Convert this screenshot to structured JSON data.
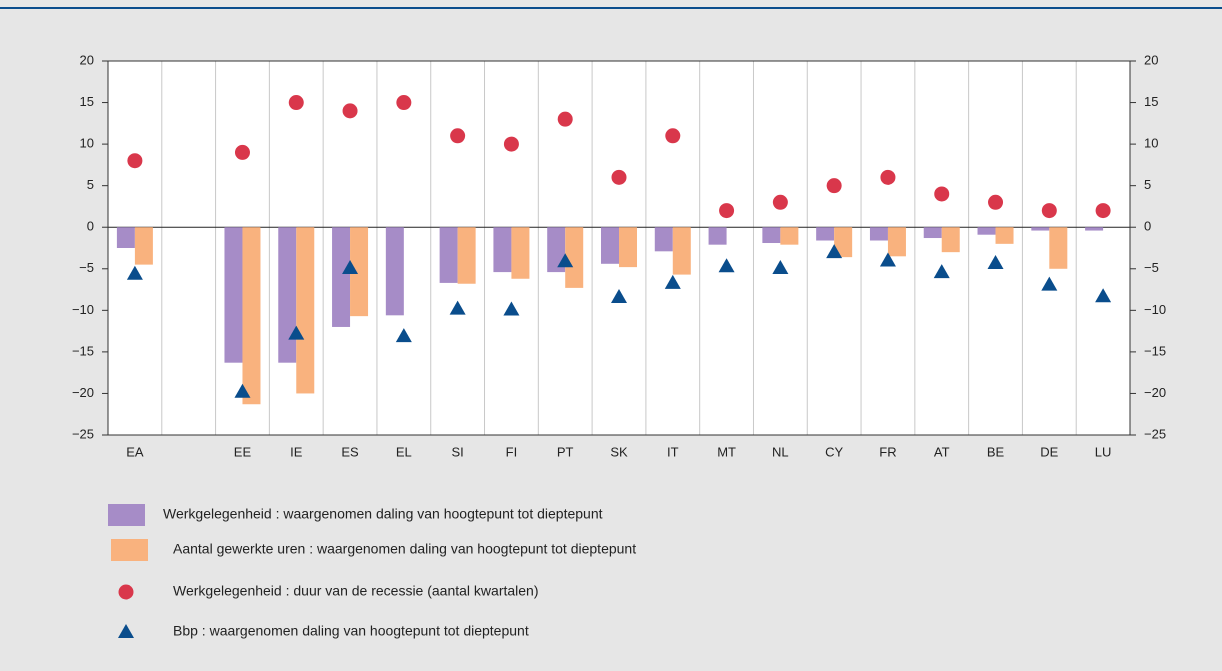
{
  "chart_data": {
    "type": "bar",
    "categories": [
      "EA",
      null,
      "EE",
      "IE",
      "ES",
      "EL",
      "SI",
      "FI",
      "PT",
      "SK",
      "IT",
      "MT",
      "NL",
      "CY",
      "FR",
      "AT",
      "BE",
      "DE",
      "LU"
    ],
    "series": [
      {
        "name": "Werkgelegenheid : waargenomen daling van hoogtepunt tot dieptepunt",
        "color": "#a68cc7",
        "marker": "bar",
        "values": [
          -2.5,
          null,
          -16.3,
          -16.3,
          -12,
          -10.6,
          -6.7,
          -5.4,
          -5.4,
          -4.4,
          -2.9,
          -2.1,
          -1.9,
          -1.6,
          -1.6,
          -1.3,
          -0.9,
          -0.4,
          -0.4
        ]
      },
      {
        "name": "Aantal gewerkte uren : waargenomen daling van hoogtepunt tot dieptepunt",
        "color": "#f9b27e",
        "marker": "bar",
        "values": [
          -4.5,
          null,
          -21.3,
          -20,
          -10.7,
          null,
          -6.8,
          -6.2,
          -7.3,
          -4.8,
          -5.7,
          null,
          -2.1,
          -3.6,
          -3.5,
          -3.0,
          -2.0,
          -5.0,
          null
        ]
      },
      {
        "name": "Werkgelegenheid : duur van de recessie (aantal kwartalen)",
        "color": "#d9374b",
        "marker": "circle",
        "values": [
          8,
          null,
          9,
          15,
          14,
          15,
          11,
          10,
          13,
          6,
          11,
          2,
          3,
          5,
          6,
          4,
          3,
          2,
          2
        ]
      },
      {
        "name": "Bbp : waargenomen daling van hoogtepunt tot dieptepunt",
        "color": "#0a4d8c",
        "marker": "triangle",
        "values": [
          -5.6,
          null,
          -19.8,
          -12.8,
          -4.9,
          -13.1,
          -9.8,
          -9.9,
          -4.1,
          -8.4,
          -6.7,
          -4.7,
          -4.9,
          -3.0,
          -4.0,
          -5.4,
          -4.3,
          -6.9,
          -8.3
        ]
      }
    ],
    "ylim": [
      -25,
      20
    ],
    "yticks": [
      {
        "value": -25,
        "label": "−25"
      },
      {
        "value": -20,
        "label": "−20"
      },
      {
        "value": -15,
        "label": "−15"
      },
      {
        "value": -10,
        "label": "−10"
      },
      {
        "value": -5,
        "label": "−5"
      },
      0,
      5,
      10,
      15,
      20
    ],
    "grid": true
  }
}
